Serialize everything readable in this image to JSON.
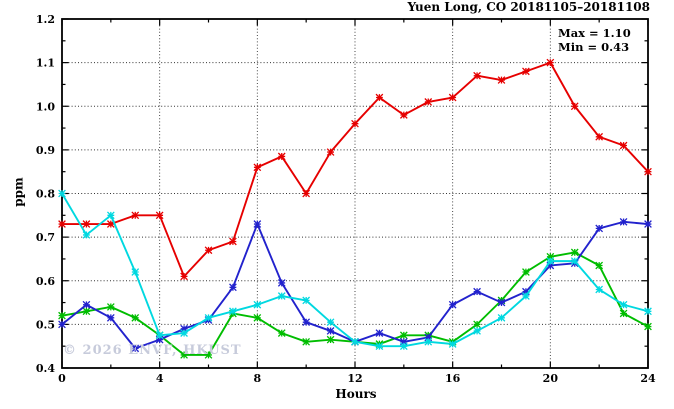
{
  "chart_data": {
    "type": "line",
    "title": "Yuen Long, CO 20181105–20181108",
    "annotation": {
      "max_label": "Max = 1.10",
      "min_label": "Min = 0.43"
    },
    "xlabel": "Hours",
    "ylabel": "ppm",
    "watermark": "© 2026 ENVF, HKUST",
    "watermark_color": "#c7cbdb",
    "xlim": [
      0,
      24
    ],
    "ylim": [
      0.4,
      1.2
    ],
    "x_tick_values": [
      0,
      4,
      8,
      12,
      16,
      20,
      24
    ],
    "x_tick_labels": [
      "0",
      "4",
      "8",
      "12",
      "16",
      "20",
      "24"
    ],
    "x_minor_tick_values": [
      2,
      6,
      10,
      14,
      18,
      22
    ],
    "y_tick_values": [
      0.4,
      0.5,
      0.6,
      0.7,
      0.8,
      0.9,
      1.0,
      1.1,
      1.2
    ],
    "y_tick_labels": [
      "0.4",
      "0.5",
      "0.6",
      "0.7",
      "0.8",
      "0.9",
      "1.0",
      "1.1",
      "1.2"
    ],
    "y_minor_tick_values": [
      0.45,
      0.55,
      0.65,
      0.75,
      0.85,
      0.95,
      1.05,
      1.15
    ],
    "grid": "dotted",
    "legend": "none",
    "marker": "asterisk",
    "x": [
      0,
      1,
      2,
      3,
      4,
      5,
      6,
      7,
      8,
      9,
      10,
      11,
      12,
      13,
      14,
      15,
      16,
      17,
      18,
      19,
      20,
      21,
      22,
      23,
      24
    ],
    "series": [
      {
        "name": "red",
        "color": "#e60000",
        "values": [
          0.73,
          0.73,
          0.73,
          0.75,
          0.75,
          0.61,
          0.67,
          0.69,
          0.86,
          0.885,
          0.8,
          0.895,
          0.96,
          1.02,
          0.98,
          1.01,
          1.02,
          1.07,
          1.06,
          1.08,
          1.1,
          1.0,
          0.93,
          0.91,
          0.85
        ]
      },
      {
        "name": "green",
        "color": "#00bd00",
        "values": [
          0.52,
          0.53,
          0.54,
          0.515,
          0.475,
          0.43,
          0.43,
          0.525,
          0.515,
          0.48,
          0.46,
          0.465,
          0.46,
          0.455,
          0.475,
          0.475,
          0.46,
          0.5,
          0.555,
          0.62,
          0.655,
          0.665,
          0.635,
          0.525,
          0.495
        ]
      },
      {
        "name": "blue",
        "color": "#2222cd",
        "values": [
          0.5,
          0.545,
          0.515,
          0.445,
          0.465,
          0.49,
          0.51,
          0.585,
          0.73,
          0.595,
          0.505,
          0.485,
          0.46,
          0.48,
          0.46,
          0.47,
          0.545,
          0.575,
          0.55,
          0.575,
          0.635,
          0.64,
          0.72,
          0.735,
          0.73
        ]
      },
      {
        "name": "cyan",
        "color": "#00d8e0",
        "values": [
          0.8,
          0.705,
          0.75,
          0.62,
          0.475,
          0.48,
          0.515,
          0.53,
          0.545,
          0.565,
          0.555,
          0.505,
          0.46,
          0.45,
          0.45,
          0.46,
          0.455,
          0.485,
          0.515,
          0.565,
          0.645,
          0.645,
          0.58,
          0.545,
          0.53
        ]
      }
    ]
  }
}
